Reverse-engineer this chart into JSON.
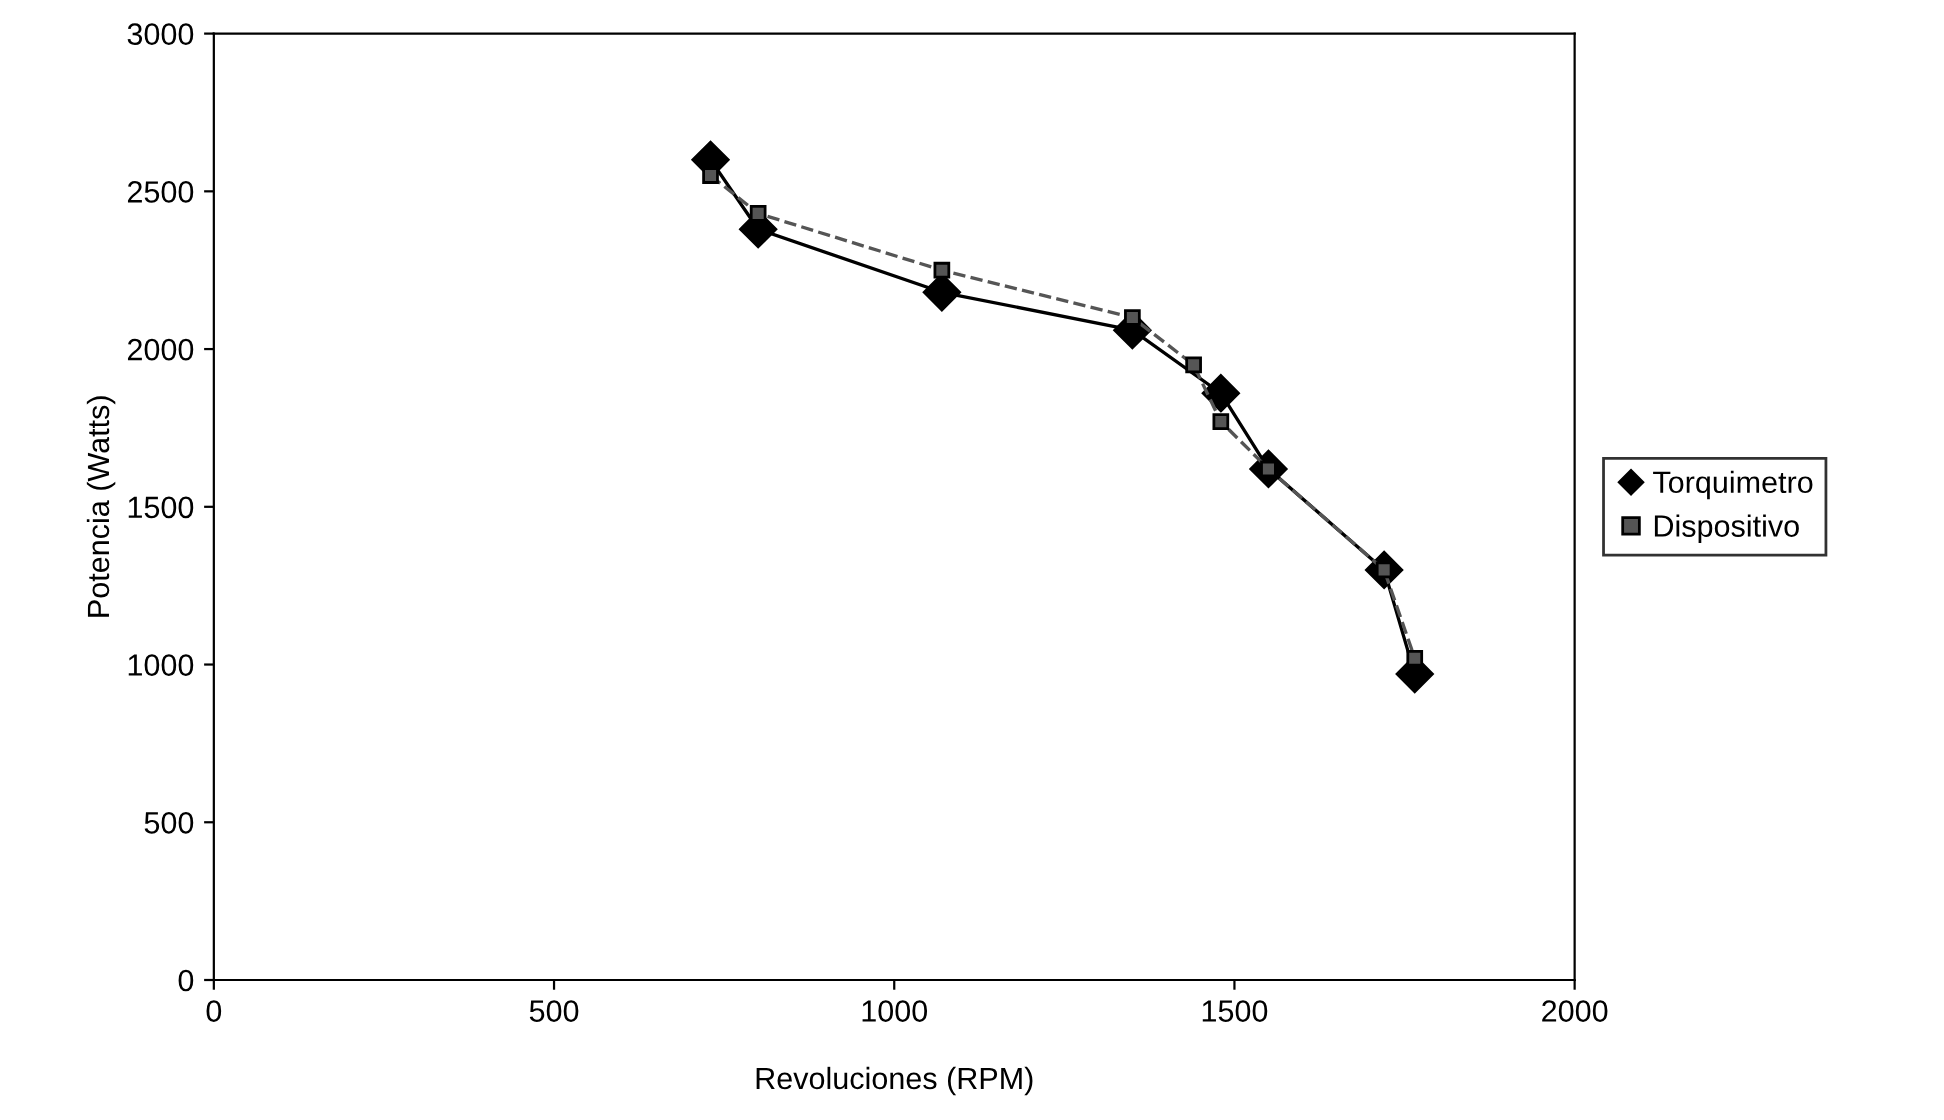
{
  "chart_data": {
    "type": "line",
    "xlabel": "Revoluciones (RPM)",
    "ylabel": "Potencia (Watts)",
    "xlim": [
      0,
      2000
    ],
    "xticks": [
      0,
      500,
      1000,
      1500,
      2000
    ],
    "ylim": [
      0,
      3000
    ],
    "yticks": [
      0,
      500,
      1000,
      1500,
      2000,
      2500,
      3000
    ],
    "grid": false,
    "legend": "right",
    "series": [
      {
        "name": "Torquimetro",
        "color": "#000000",
        "marker": "diamond",
        "line_style": "solid",
        "x": [
          730,
          800,
          1070,
          1350,
          1480,
          1550,
          1720,
          1765
        ],
        "values": [
          2600,
          2380,
          2180,
          2060,
          1860,
          1620,
          1300,
          970
        ]
      },
      {
        "name": "Dispositivo",
        "color": "#555555",
        "marker": "square",
        "line_style": "dashed",
        "x": [
          730,
          800,
          1070,
          1350,
          1440,
          1480,
          1550,
          1720,
          1765
        ],
        "values": [
          2550,
          2430,
          2250,
          2100,
          1950,
          1770,
          1620,
          1300,
          1020
        ]
      }
    ]
  }
}
